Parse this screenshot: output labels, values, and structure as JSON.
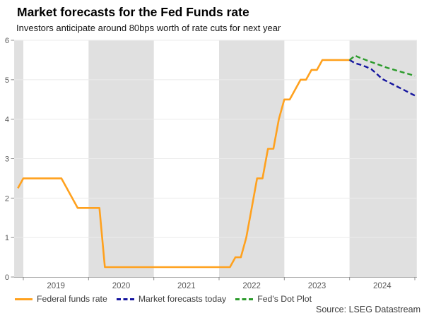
{
  "header": {
    "title": "Market forecasts for the Fed Funds rate",
    "subtitle": "Investors anticipate around 80bps worth of rate cuts for next year"
  },
  "source": "Source: LSEG Datastream",
  "colors": {
    "federal_funds": "#FFA11E",
    "market_forecast": "#15159F",
    "dot_plot": "#2B9B2B",
    "year_band": "#E0E0E0",
    "gridline": "#EBEBEB",
    "axis_line": "#ADADAD",
    "tick": "#8C8C8C",
    "tick_label": "#595959"
  },
  "chart_data": {
    "type": "line",
    "title": "Market forecasts for the Fed Funds rate",
    "subtitle": "Investors anticipate around 80bps worth of rate cuts for next year",
    "ylabel": "",
    "xlabel": "",
    "ylim": [
      0,
      6
    ],
    "yticks": [
      0,
      1,
      2,
      3,
      4,
      5,
      6
    ],
    "x_range_years": [
      2018.86,
      2025.03
    ],
    "year_tick_boundaries": [
      2019,
      2020,
      2021,
      2022,
      2023,
      2024,
      2025
    ],
    "year_labels": [
      "2019",
      "2020",
      "2021",
      "2022",
      "2023",
      "2024"
    ],
    "shaded_year_bands": [
      [
        2018.86,
        2019
      ],
      [
        2020,
        2021
      ],
      [
        2022,
        2023
      ],
      [
        2024,
        2025.03
      ]
    ],
    "grid": "horizontal",
    "legend_position": "bottom",
    "series": [
      {
        "key": "federal-funds-rate",
        "name": "Federal funds rate",
        "color": "#FFA11E",
        "dash": "solid",
        "start_year": 2018.9167,
        "step_years": 0.08333,
        "values": [
          2.25,
          2.5,
          2.5,
          2.5,
          2.5,
          2.5,
          2.5,
          2.5,
          2.5,
          2.25,
          2.0,
          1.75,
          1.75,
          1.75,
          1.75,
          1.75,
          0.25,
          0.25,
          0.25,
          0.25,
          0.25,
          0.25,
          0.25,
          0.25,
          0.25,
          0.25,
          0.25,
          0.25,
          0.25,
          0.25,
          0.25,
          0.25,
          0.25,
          0.25,
          0.25,
          0.25,
          0.25,
          0.25,
          0.25,
          0.25,
          0.5,
          0.5,
          1.0,
          1.75,
          2.5,
          2.5,
          3.25,
          3.25,
          4.0,
          4.5,
          4.5,
          4.75,
          5.0,
          5.0,
          5.25,
          5.25,
          5.5,
          5.5,
          5.5,
          5.5,
          5.5,
          5.5
        ]
      },
      {
        "key": "market-forecasts-today",
        "name": "Market forecasts today",
        "color": "#15159F",
        "dash": "dashed",
        "start_year": 2024.0,
        "step_years": 0.08333,
        "values": [
          5.5,
          5.42,
          5.38,
          5.33,
          5.27,
          5.15,
          5.02,
          4.95,
          4.88,
          4.81,
          4.74,
          4.67,
          4.6
        ]
      },
      {
        "key": "feds-dot-plot",
        "name": "Fed's Dot Plot",
        "color": "#2B9B2B",
        "dash": "dashed",
        "start_year": 2024.0,
        "step_years": 0.08333,
        "values": [
          5.5,
          5.61,
          5.55,
          5.5,
          5.45,
          5.4,
          5.35,
          5.3,
          5.26,
          5.22,
          5.18,
          5.14,
          5.1
        ]
      }
    ]
  }
}
